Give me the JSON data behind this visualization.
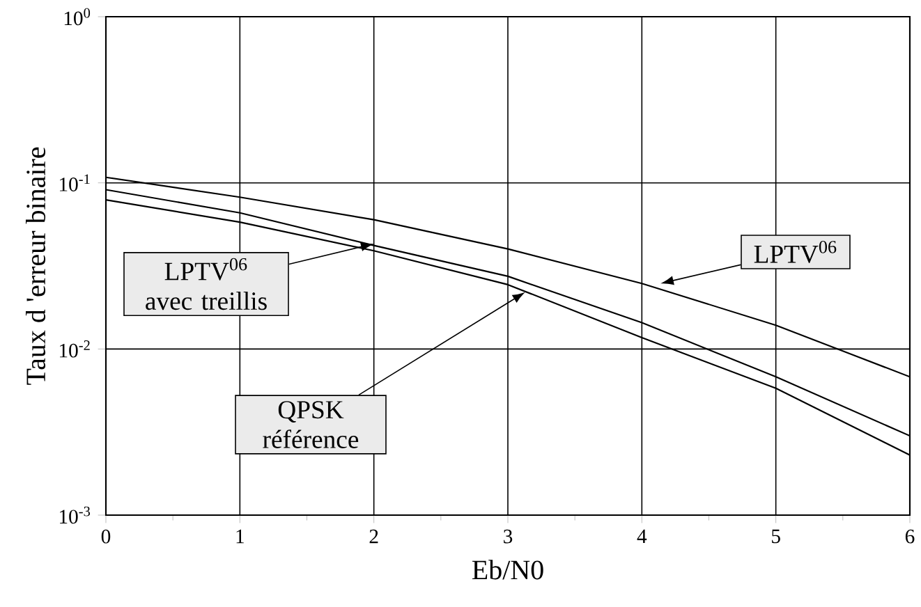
{
  "chart_data": {
    "type": "line",
    "xlabel": "Eb/N0",
    "ylabel": "Taux d 'erreur binaire",
    "log": "y",
    "grid": true,
    "marker": "none",
    "line_style": "solid",
    "x": [
      0,
      1,
      2,
      3,
      4,
      5,
      6
    ],
    "xlim": [
      0,
      6
    ],
    "xticks": [
      0,
      1,
      2,
      3,
      4,
      5,
      6
    ],
    "ylim": [
      0.001,
      1
    ],
    "yticks": [
      {
        "value": 1,
        "label": "10$^{0}$"
      },
      {
        "value": 0.1,
        "label": "10$^{-1}$"
      },
      {
        "value": 0.01,
        "label": "10$^{-2}$"
      },
      {
        "value": 0.001,
        "label": "10$^{-3}$"
      }
    ],
    "series": [
      {
        "color": "#000000",
        "values": [
          0.108,
          0.082,
          0.06,
          0.04,
          0.0248,
          0.0139,
          0.0068
        ]
      },
      {
        "color": "#000000",
        "values": [
          0.091,
          0.066,
          0.042,
          0.0274,
          0.0144,
          0.0068,
          0.003
        ]
      },
      {
        "color": "#000000",
        "values": [
          0.079,
          0.058,
          0.039,
          0.0244,
          0.0117,
          0.0058,
          0.0023
        ]
      }
    ],
    "annotations": [
      {
        "text": "LPTV$^{06}$",
        "x": 4.14,
        "y": 0.0248
      },
      {
        "text": "LPTV$^{06}$ avec treillis",
        "x": 2.0,
        "y": 0.043
      },
      {
        "text": "QPSK référence",
        "x": 3.13,
        "y": 0.022
      }
    ]
  }
}
